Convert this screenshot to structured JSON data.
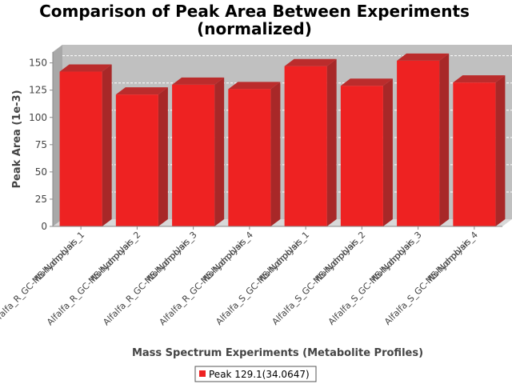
{
  "chart_data": {
    "type": "bar",
    "title_lines": [
      "Comparison of Peak Area Between Experiments",
      "(normalized)"
    ],
    "xlabel": "Mass Spectrum Experiments (Metabolite Profiles)",
    "ylabel": "Peak Area (1e-3)",
    "ylim": [
      0,
      160
    ],
    "yticks": [
      "0",
      "25",
      "50",
      "75",
      "100",
      "125",
      "150"
    ],
    "categories": [
      [
        "Alfalfa_R_GC-MS-Nonpolar-",
        "Nohydrolysis_1"
      ],
      [
        "Alfalfa_R_GC-MS-Nonpolar-",
        "Nohydrolysis_2"
      ],
      [
        "Alfalfa_R_GC-MS-Nonpolar-",
        "Nohydrolysis_3"
      ],
      [
        "Alfalfa_R_GC-MS-Nonpolar-",
        "Nohydrolysis_4"
      ],
      [
        "Alfalfa_S_GC-MS-Nonpolar-",
        "Nohydrolysis_1"
      ],
      [
        "Alfalfa_S_GC-MS-Nonpolar-",
        "Nohydrolysis_2"
      ],
      [
        "Alfalfa_S_GC-MS-Nonpolar-",
        "Nohydrolysis_3"
      ],
      [
        "Alfalfa_S_GC-MS-Nonpolar-",
        "Nohydrolysis_4"
      ]
    ],
    "series": [
      {
        "name": "Peak 129.1(34.0647)",
        "color": "#ee2222",
        "values": [
          142,
          121,
          130,
          126,
          147,
          129,
          152,
          132
        ]
      }
    ],
    "grid": true,
    "legend_position": "bottom",
    "plot_background": "#c0c0c0"
  }
}
